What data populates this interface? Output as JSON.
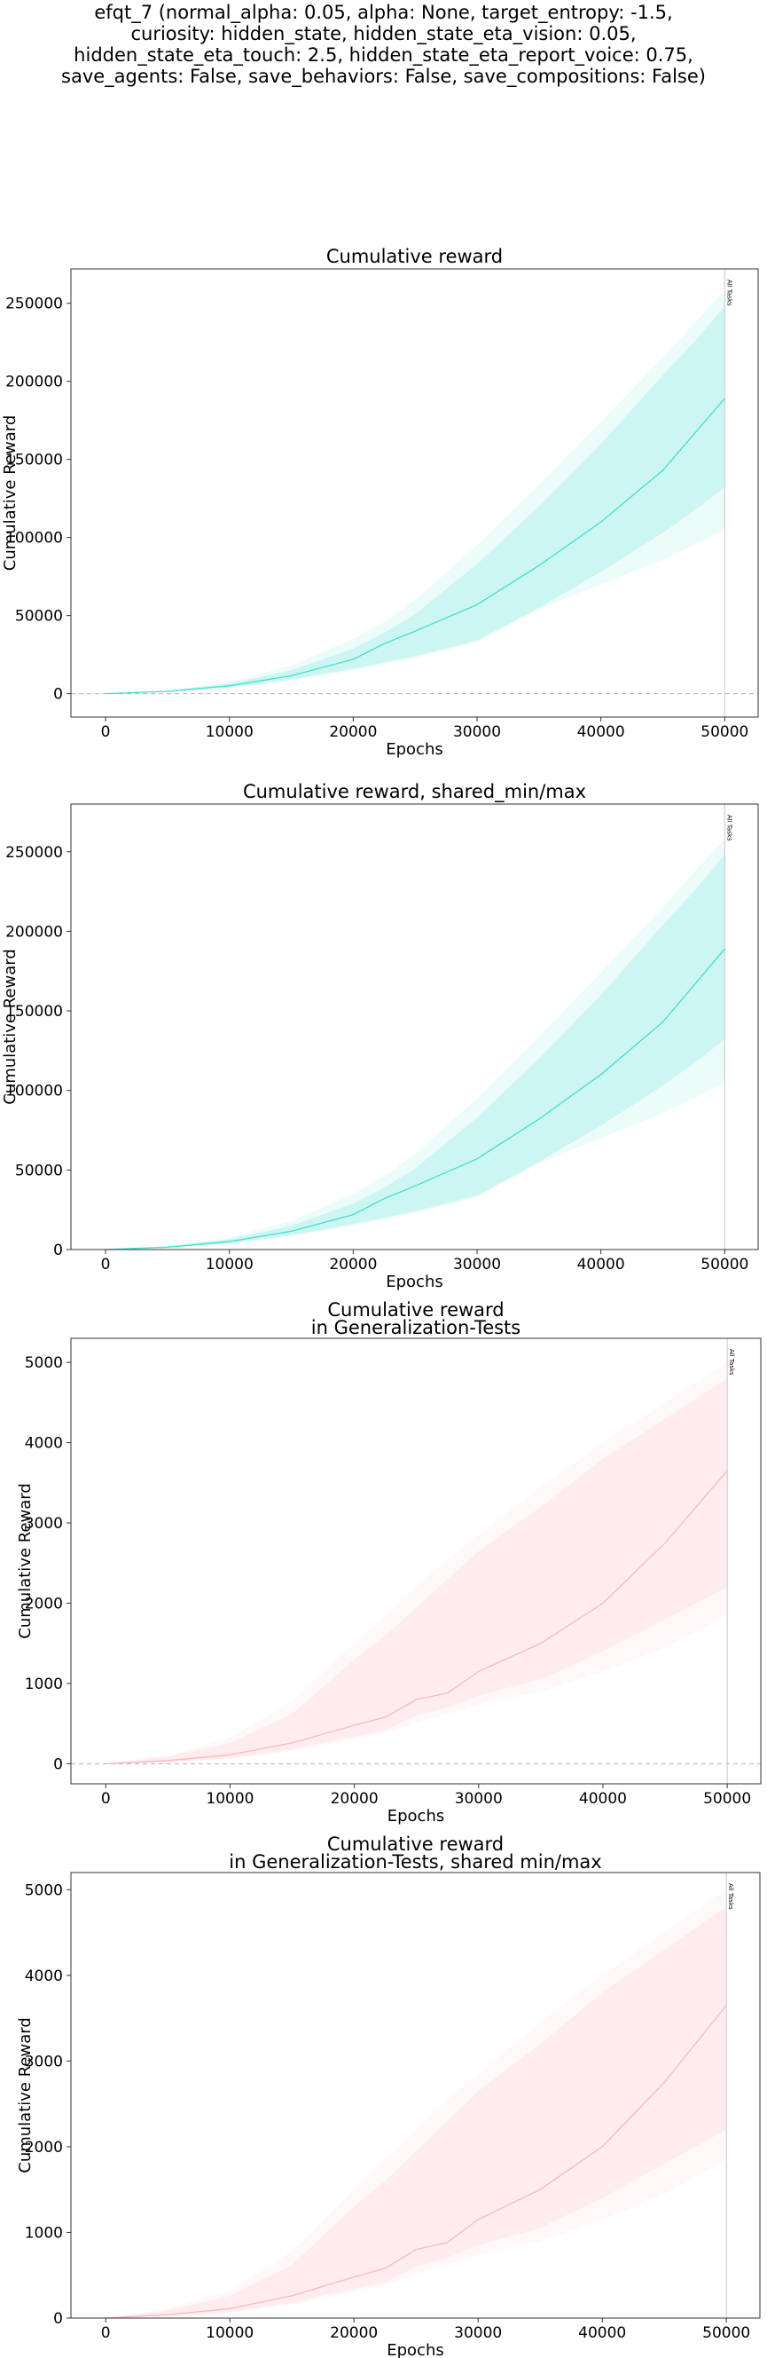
{
  "figure": {
    "title_lines": [
      "efqt_7 (normal_alpha: 0.05, alpha: None, target_entropy: -1.5,",
      "curiosity: hidden_state, hidden_state_eta_vision: 0.05,",
      "hidden_state_eta_touch: 2.5, hidden_state_eta_report_voice: 0.75,",
      "save_agents: False, save_behaviors: False, save_compositions: False)"
    ]
  },
  "colors": {
    "teal_line": "#40e0d0",
    "teal_band": "#40e0d0",
    "pink_line": "#ffb6c1",
    "pink_band": "#ffb6c1"
  },
  "chart_data": [
    {
      "type": "line",
      "title": [
        "Cumulative reward"
      ],
      "xlabel": "Epochs",
      "ylabel": "Cumulative Reward",
      "xlim": [
        -2800,
        52700
      ],
      "ylim": [
        -15000,
        272000
      ],
      "xticks": [
        0,
        10000,
        20000,
        30000,
        40000,
        50000
      ],
      "yticks": [
        0,
        50000,
        100000,
        150000,
        200000,
        250000
      ],
      "zero_line": true,
      "vline": {
        "x": 50000,
        "label": "All Tasks"
      },
      "color": "teal",
      "x": [
        0,
        5000,
        10000,
        15000,
        20000,
        22500,
        25000,
        30000,
        35000,
        40000,
        45000,
        47500,
        50000
      ],
      "mean": [
        0,
        1500,
        5000,
        11500,
        22000,
        32000,
        40000,
        57000,
        82000,
        110000,
        143000,
        166000,
        189000
      ],
      "band_inner": {
        "low": [
          0,
          1200,
          4000,
          9000,
          16000,
          20000,
          24000,
          34000,
          55000,
          78000,
          103000,
          117000,
          132000
        ],
        "high": [
          0,
          1800,
          6500,
          15000,
          29000,
          39000,
          51000,
          83000,
          120000,
          160000,
          204000,
          225000,
          248000
        ]
      },
      "band_outer": {
        "low": [
          0,
          1000,
          3500,
          8500,
          15000,
          19000,
          23000,
          33000,
          54000,
          70000,
          86000,
          95000,
          105000
        ],
        "high": [
          0,
          2000,
          7500,
          18000,
          35000,
          46000,
          60000,
          95000,
          134000,
          174000,
          215000,
          237000,
          258000
        ]
      }
    },
    {
      "type": "line",
      "title": [
        "Cumulative reward, shared_min/max"
      ],
      "xlabel": "Epochs",
      "ylabel": "Cumulative Reward",
      "xlim": [
        -2800,
        52700
      ],
      "ylim": [
        0,
        280000
      ],
      "xticks": [
        0,
        10000,
        20000,
        30000,
        40000,
        50000
      ],
      "yticks": [
        0,
        50000,
        100000,
        150000,
        200000,
        250000
      ],
      "zero_line": false,
      "vline": {
        "x": 50000,
        "label": "All Tasks"
      },
      "color": "teal",
      "x": [
        0,
        5000,
        10000,
        15000,
        20000,
        22500,
        25000,
        30000,
        35000,
        40000,
        45000,
        47500,
        50000
      ],
      "mean": [
        0,
        1500,
        5000,
        11500,
        22000,
        32000,
        40000,
        57000,
        82000,
        110000,
        143000,
        166000,
        189000
      ],
      "band_inner": {
        "low": [
          0,
          1200,
          4000,
          9000,
          16000,
          20000,
          24000,
          34000,
          55000,
          78000,
          103000,
          117000,
          132000
        ],
        "high": [
          0,
          1800,
          6500,
          15000,
          29000,
          39000,
          51000,
          83000,
          120000,
          160000,
          204000,
          225000,
          248000
        ]
      },
      "band_outer": {
        "low": [
          0,
          1000,
          3500,
          8500,
          15000,
          19000,
          23000,
          33000,
          54000,
          70000,
          86000,
          95000,
          105000
        ],
        "high": [
          0,
          2000,
          7500,
          18000,
          35000,
          46000,
          60000,
          95000,
          134000,
          174000,
          215000,
          237000,
          258000
        ]
      }
    },
    {
      "type": "line",
      "title": [
        "Cumulative reward",
        "in Generalization-Tests"
      ],
      "xlabel": "Epochs",
      "ylabel": "Cumulative Reward",
      "xlim": [
        -2800,
        52700
      ],
      "ylim": [
        -250,
        5300
      ],
      "xticks": [
        0,
        10000,
        20000,
        30000,
        40000,
        50000
      ],
      "yticks": [
        0,
        1000,
        2000,
        3000,
        4000,
        5000
      ],
      "zero_line": true,
      "vline": {
        "x": 50000,
        "label": "All Tasks"
      },
      "color": "pink",
      "x": [
        0,
        5000,
        10000,
        15000,
        20000,
        22500,
        25000,
        27500,
        30000,
        35000,
        40000,
        45000,
        50000
      ],
      "mean": [
        0,
        40,
        110,
        260,
        480,
        580,
        800,
        880,
        1150,
        1500,
        2000,
        2750,
        3650
      ],
      "band_inner": {
        "low": [
          0,
          20,
          70,
          180,
          340,
          420,
          600,
          700,
          850,
          1050,
          1400,
          1800,
          2200
        ],
        "high": [
          0,
          90,
          260,
          620,
          1300,
          1600,
          1950,
          2300,
          2650,
          3200,
          3800,
          4300,
          4800
        ]
      },
      "band_outer": {
        "low": [
          0,
          15,
          60,
          160,
          300,
          380,
          520,
          620,
          740,
          900,
          1150,
          1450,
          1850
        ],
        "high": [
          0,
          110,
          320,
          780,
          1500,
          1850,
          2200,
          2550,
          2850,
          3450,
          4000,
          4500,
          5000
        ]
      }
    },
    {
      "type": "line",
      "title": [
        "Cumulative reward",
        "in Generalization-Tests, shared min/max"
      ],
      "xlabel": "Epochs",
      "ylabel": "Cumulative Reward",
      "xlim": [
        -2800,
        52700
      ],
      "ylim": [
        0,
        5200
      ],
      "xticks": [
        0,
        10000,
        20000,
        30000,
        40000,
        50000
      ],
      "yticks": [
        0,
        1000,
        2000,
        3000,
        4000,
        5000
      ],
      "zero_line": false,
      "vline": {
        "x": 50000,
        "label": "All Tasks"
      },
      "color": "pink",
      "x": [
        0,
        5000,
        10000,
        15000,
        20000,
        22500,
        25000,
        27500,
        30000,
        35000,
        40000,
        45000,
        50000
      ],
      "mean": [
        0,
        40,
        110,
        260,
        480,
        580,
        800,
        880,
        1150,
        1500,
        2000,
        2750,
        3650
      ],
      "band_inner": {
        "low": [
          0,
          20,
          70,
          180,
          340,
          420,
          600,
          700,
          850,
          1050,
          1400,
          1800,
          2200
        ],
        "high": [
          0,
          90,
          260,
          620,
          1300,
          1600,
          1950,
          2300,
          2650,
          3200,
          3800,
          4300,
          4800
        ]
      },
      "band_outer": {
        "low": [
          0,
          15,
          60,
          160,
          300,
          380,
          520,
          620,
          740,
          900,
          1150,
          1450,
          1850
        ],
        "high": [
          0,
          110,
          320,
          780,
          1500,
          1850,
          2200,
          2550,
          2850,
          3450,
          4000,
          4500,
          5000
        ]
      }
    }
  ]
}
